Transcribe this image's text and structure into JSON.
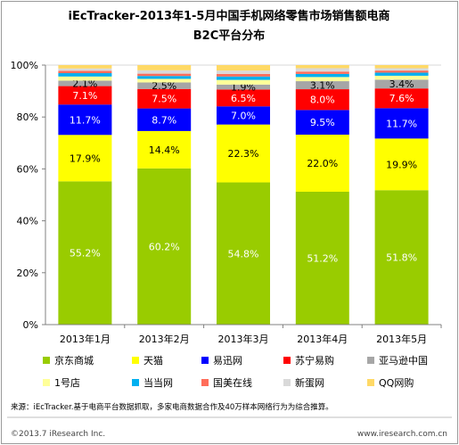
{
  "header": {
    "title_line1": "iEcTracker-2013年1-5月中国手机网络零售市场销售额电商",
    "title_line2": "B2C平台分布"
  },
  "chart_data": {
    "type": "bar",
    "stacked": true,
    "categories": [
      "2013年1月",
      "2013年2月",
      "2013年3月",
      "2013年4月",
      "2013年5月"
    ],
    "y_ticks": [
      "0%",
      "20%",
      "40%",
      "60%",
      "80%",
      "100%"
    ],
    "ylim": [
      0,
      100
    ],
    "series": [
      {
        "name": "京东商城",
        "color": "#99cc00",
        "values": [
          55.2,
          60.2,
          54.8,
          51.2,
          51.8
        ],
        "labels": [
          "55.2%",
          "60.2%",
          "54.8%",
          "51.2%",
          "51.8%"
        ],
        "label_color": "#ffffff"
      },
      {
        "name": "天猫",
        "color": "#ffff00",
        "values": [
          17.9,
          14.4,
          22.3,
          22.0,
          19.9
        ],
        "labels": [
          "17.9%",
          "14.4%",
          "22.3%",
          "22.0%",
          "19.9%"
        ],
        "label_color": "#000000"
      },
      {
        "name": "易迅网",
        "color": "#0000ff",
        "values": [
          11.7,
          8.7,
          7.0,
          9.5,
          11.7
        ],
        "labels": [
          "11.7%",
          "8.7%",
          "7.0%",
          "9.5%",
          "11.7%"
        ],
        "label_color": "#ffffff"
      },
      {
        "name": "苏宁易购",
        "color": "#ff0000",
        "values": [
          7.1,
          7.5,
          6.5,
          8.0,
          7.6
        ],
        "labels": [
          "7.1%",
          "7.5%",
          "6.5%",
          "8.0%",
          "7.6%"
        ],
        "label_color": "#ffffff"
      },
      {
        "name": "亚马逊中国",
        "color": "#a6a6a6",
        "values": [
          2.1,
          2.5,
          1.9,
          3.1,
          3.4
        ],
        "labels": [
          "2.1%",
          "2.5%",
          "1.9%",
          "3.1%",
          "3.4%"
        ],
        "label_color": "#000000"
      },
      {
        "name": "1号店",
        "color": "#ffff99",
        "values": [
          1.6,
          1.4,
          1.8,
          1.6,
          1.5
        ],
        "labels": [],
        "label_color": "#000000"
      },
      {
        "name": "当当网",
        "color": "#00b0f0",
        "values": [
          1.3,
          1.1,
          1.3,
          1.2,
          1.2
        ],
        "labels": [],
        "label_color": "#000000"
      },
      {
        "name": "国美在线",
        "color": "#ff6d5a",
        "values": [
          0.9,
          0.9,
          1.0,
          0.9,
          0.8
        ],
        "labels": [],
        "label_color": "#000000"
      },
      {
        "name": "新蛋网",
        "color": "#d9d9d9",
        "values": [
          0.9,
          1.3,
          1.3,
          1.3,
          0.9
        ],
        "labels": [],
        "label_color": "#000000"
      },
      {
        "name": "QQ网购",
        "color": "#ffd966",
        "values": [
          1.3,
          2.0,
          2.1,
          1.2,
          1.2
        ],
        "labels": [],
        "label_color": "#000000"
      }
    ]
  },
  "footer": {
    "source": "来源：iEcTracker.基于电商平台数据抓取，多家电商数据合作及40万样本网络行为为综合推算。",
    "copyright": "©2013.7 iResearch Inc.",
    "website": "www.iresearch.com.cn"
  }
}
